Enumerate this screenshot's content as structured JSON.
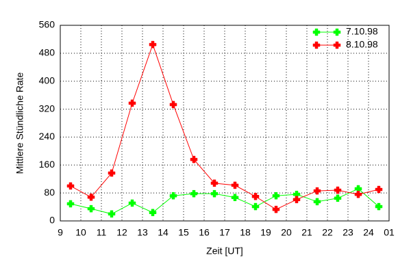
{
  "chart_data": {
    "type": "line",
    "xlabel": "Zeit [UT]",
    "ylabel": "Mittlere Stündliche Rate",
    "x": [
      9.5,
      10.5,
      11.5,
      12.5,
      13.5,
      14.5,
      15.5,
      16.5,
      17.5,
      18.5,
      19.5,
      20.5,
      21.5,
      22.5,
      23.5,
      24.5
    ],
    "series": [
      {
        "name": "7.10.98",
        "color": "#00ff00",
        "values": [
          49,
          35,
          20,
          51,
          24,
          72,
          78,
          78,
          67,
          41,
          72,
          76,
          55,
          65,
          92,
          41
        ]
      },
      {
        "name": "8.10.98",
        "color": "#ff0000",
        "values": [
          100,
          68,
          137,
          337,
          505,
          333,
          176,
          108,
          102,
          70,
          33,
          61,
          86,
          88,
          76,
          90
        ]
      }
    ],
    "xlim": [
      9,
      25
    ],
    "xticks": [
      9,
      10,
      11,
      12,
      13,
      14,
      15,
      16,
      17,
      18,
      19,
      20,
      21,
      22,
      23,
      24,
      {
        "value": 25,
        "label": "01"
      }
    ],
    "ylim": [
      0,
      560
    ],
    "yticks": [
      0,
      80,
      160,
      240,
      320,
      400,
      480,
      560
    ],
    "grid": true,
    "legend": "upper right"
  }
}
